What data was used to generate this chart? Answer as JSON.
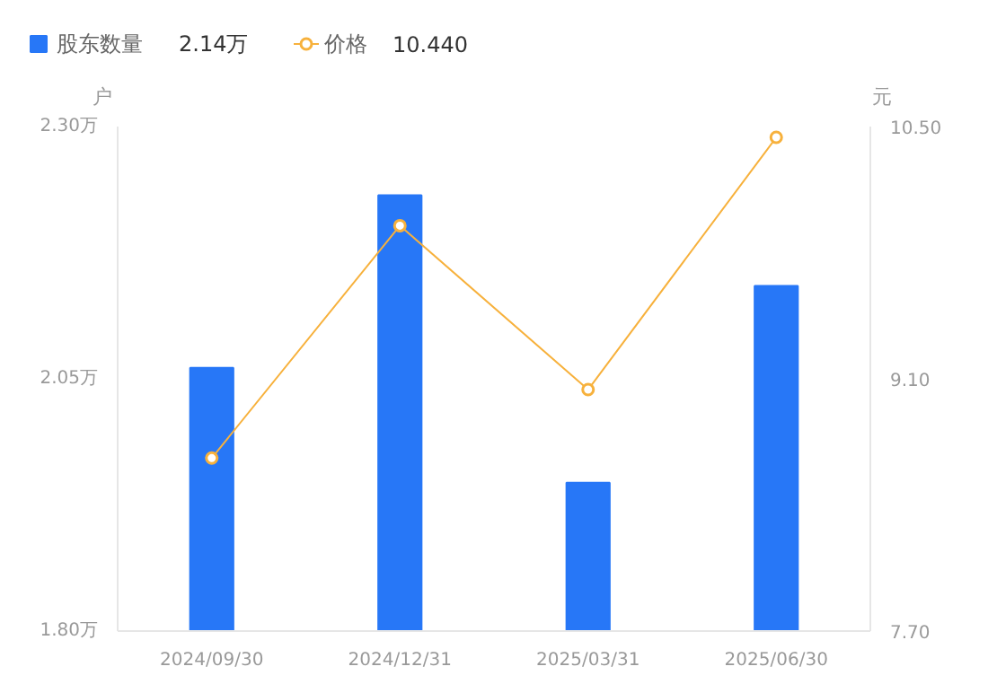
{
  "chart_data": {
    "type": "bar",
    "categories": [
      "2024/09/30",
      "2024/12/31",
      "2025/03/31",
      "2025/06/30"
    ],
    "series": [
      {
        "name": "股东数量",
        "color": "#2777f7",
        "values": [
          2.061,
          2.232,
          1.947,
          2.142
        ]
      },
      {
        "name": "价格",
        "type": "line",
        "axis": "y2",
        "color": "#f7b13c",
        "marker": "circle",
        "values": [
          8.66,
          9.95,
          9.04,
          10.44
        ]
      }
    ],
    "annotations": [
      "2.14万",
      "10.440"
    ],
    "ylabel": "户",
    "y2label": "元",
    "ylim": [
      1.8,
      2.3
    ],
    "yticks": [
      {
        "value": 1.8,
        "label": "1.80万"
      },
      {
        "value": 2.05,
        "label": "2.05万"
      },
      {
        "value": 2.3,
        "label": "2.30万"
      }
    ],
    "y2lim": [
      7.7,
      10.5
    ],
    "y2ticks": [
      {
        "value": 7.7,
        "label": "7.70"
      },
      {
        "value": 9.1,
        "label": "9.10"
      },
      {
        "value": 10.5,
        "label": "10.50"
      }
    ],
    "grid": false,
    "legend": "top left"
  }
}
